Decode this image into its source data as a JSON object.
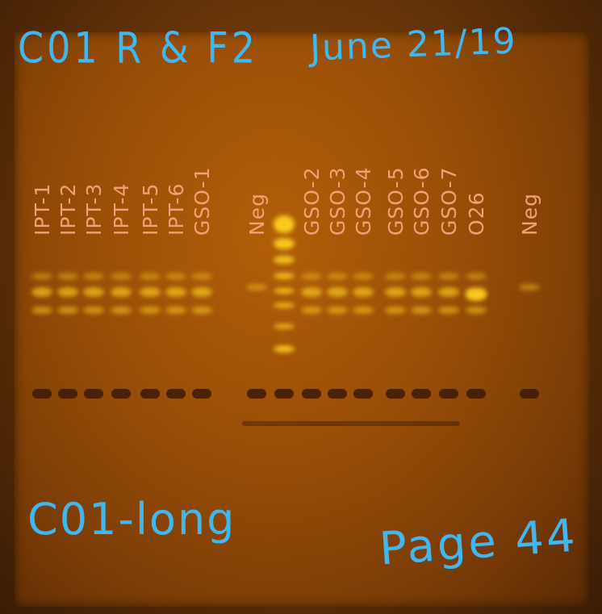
{
  "annotations": {
    "title": "C01 R & F2",
    "date": "June 21/19",
    "bottom_left": "C01-long",
    "bottom_right": "Page 44"
  },
  "lanes": [
    {
      "label": "IPT-1"
    },
    {
      "label": "IPT-2"
    },
    {
      "label": "IPT-3"
    },
    {
      "label": "IPT-4"
    },
    {
      "label": "IPT-5"
    },
    {
      "label": "IPT-6"
    },
    {
      "label": "GSO-1"
    },
    {
      "label": "Neg"
    },
    {
      "label": ""
    },
    {
      "label": "GSO-2"
    },
    {
      "label": "GSO-3"
    },
    {
      "label": "GSO-4"
    },
    {
      "label": "GSO-5"
    },
    {
      "label": "GSO-6"
    },
    {
      "label": "GSO-7"
    },
    {
      "label": "O26"
    },
    {
      "label": "Neg"
    }
  ],
  "colors": {
    "annotation_ink": "#41b6ef",
    "lane_label_ink": "#f3a079",
    "gel_background": "#9a4f07",
    "band": "#ffd020"
  }
}
